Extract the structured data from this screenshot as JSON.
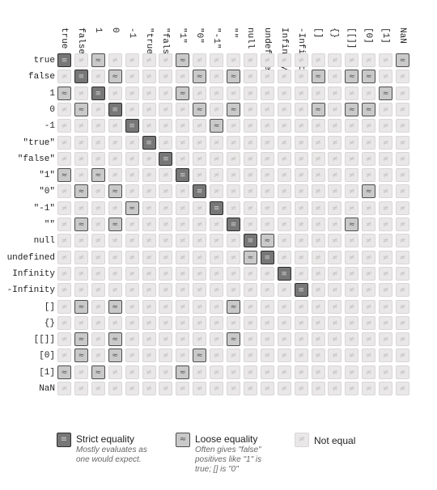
{
  "values": [
    "true",
    "false",
    "1",
    "0",
    "-1",
    "\"true\"",
    "\"false\"",
    "\"1\"",
    "\"0\"",
    "\"-1\"",
    "\"\"",
    "null",
    "undefined",
    "Infinity",
    "-Infinity",
    "[]",
    "{}",
    "[[]]",
    "[0]",
    "[1]",
    "NaN"
  ],
  "symbols": {
    "strict": "≡",
    "loose": "≈",
    "none": "≠"
  },
  "matrix": [
    "S.L....L............L",
    ".S.L....L.L....L.LL..",
    "L.S....L...........L.",
    ".L.S....L.L....L.LL..",
    "....S....L...........",
    ".....S...............",
    "......S..............",
    "L.L....S.............",
    ".L.L....S.........L..",
    "....L....S...........",
    ".L.L......S......L...",
    "...........SL........",
    "...........LS........",
    ".............S.......",
    "..............S......",
    ".L.L......L..........",
    "....................",
    ".L.L......L..........",
    ".L.L....L............",
    "L.L....L.............",
    "....................."
  ],
  "legend": {
    "strict": {
      "title": "Strict equality",
      "desc": "Mostly evaluates as one would expect."
    },
    "loose": {
      "title": "Loose equality",
      "desc": "Often gives \"false\" positives like \"1\" is true; [] is \"0\""
    },
    "none": {
      "title": "Not equal"
    }
  }
}
